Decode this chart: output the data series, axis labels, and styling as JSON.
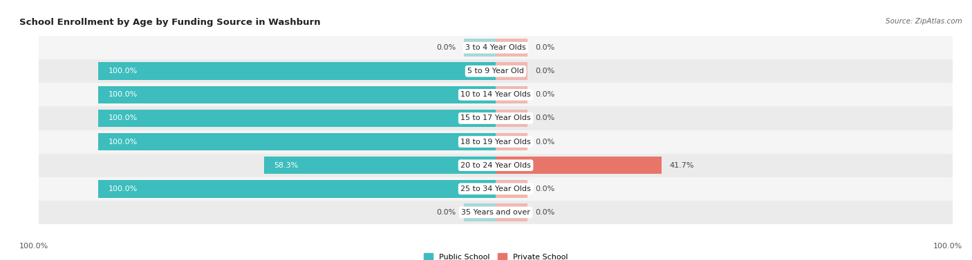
{
  "title": "School Enrollment by Age by Funding Source in Washburn",
  "source": "Source: ZipAtlas.com",
  "categories": [
    "3 to 4 Year Olds",
    "5 to 9 Year Old",
    "10 to 14 Year Olds",
    "15 to 17 Year Olds",
    "18 to 19 Year Olds",
    "20 to 24 Year Olds",
    "25 to 34 Year Olds",
    "35 Years and over"
  ],
  "public_values": [
    0.0,
    100.0,
    100.0,
    100.0,
    100.0,
    58.3,
    100.0,
    0.0
  ],
  "private_values": [
    0.0,
    0.0,
    0.0,
    0.0,
    0.0,
    41.7,
    0.0,
    0.0
  ],
  "public_color": "#3dbdbd",
  "private_color": "#e8756a",
  "public_color_light": "#a8d8d8",
  "private_color_light": "#f0b8b2",
  "row_bg_even": "#ebebeb",
  "row_bg_odd": "#f5f5f5",
  "label_fontsize": 8,
  "title_fontsize": 9.5,
  "source_fontsize": 7.5,
  "legend_fontsize": 8,
  "value_fontsize": 8,
  "axis_label_fontsize": 8
}
